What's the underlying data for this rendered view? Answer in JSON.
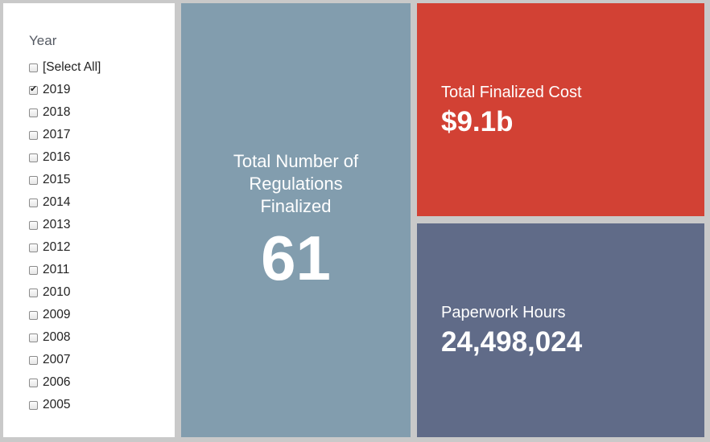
{
  "filter": {
    "title": "Year",
    "items": [
      {
        "label": "[Select All]",
        "checked": false
      },
      {
        "label": "2019",
        "checked": true
      },
      {
        "label": "2018",
        "checked": false
      },
      {
        "label": "2017",
        "checked": false
      },
      {
        "label": "2016",
        "checked": false
      },
      {
        "label": "2015",
        "checked": false
      },
      {
        "label": "2014",
        "checked": false
      },
      {
        "label": "2013",
        "checked": false
      },
      {
        "label": "2012",
        "checked": false
      },
      {
        "label": "2011",
        "checked": false
      },
      {
        "label": "2010",
        "checked": false
      },
      {
        "label": "2009",
        "checked": false
      },
      {
        "label": "2008",
        "checked": false
      },
      {
        "label": "2007",
        "checked": false
      },
      {
        "label": "2006",
        "checked": false
      },
      {
        "label": "2005",
        "checked": false
      }
    ]
  },
  "regulations": {
    "label": "Total Number of Regulations Finalized",
    "value": "61",
    "color": "#829dae"
  },
  "cost": {
    "label": "Total Finalized Cost",
    "value": "$9.1b",
    "color": "#d24134"
  },
  "hours": {
    "label": "Paperwork Hours",
    "value": "24,498,024",
    "color": "#606b88"
  }
}
